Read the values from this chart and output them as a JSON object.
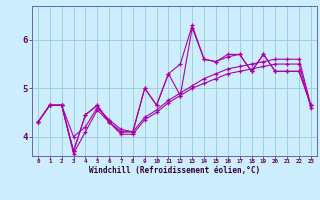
{
  "xlabel": "Windchill (Refroidissement éolien,°C)",
  "bg_color": "#cceeff",
  "line_color": "#aa00aa",
  "grid_color": "#99cccc",
  "xlim": [
    -0.5,
    23.5
  ],
  "ylim": [
    3.6,
    6.7
  ],
  "xticks": [
    0,
    1,
    2,
    3,
    4,
    5,
    6,
    7,
    8,
    9,
    10,
    11,
    12,
    13,
    14,
    15,
    16,
    17,
    18,
    19,
    20,
    21,
    22,
    23
  ],
  "yticks": [
    4,
    5,
    6
  ],
  "line1_x": [
    0,
    1,
    2,
    3,
    4,
    5,
    6,
    7,
    8,
    9,
    10,
    11,
    12,
    13,
    14,
    15,
    16,
    17,
    18,
    19,
    20,
    21,
    22,
    23
  ],
  "line1_y": [
    4.3,
    4.65,
    4.65,
    3.7,
    4.45,
    4.65,
    4.3,
    4.1,
    4.1,
    5.0,
    4.65,
    5.3,
    5.5,
    6.3,
    5.6,
    5.55,
    5.7,
    5.7,
    5.35,
    5.7,
    5.35,
    5.35,
    5.35,
    4.65
  ],
  "line2_x": [
    0,
    1,
    2,
    3,
    4,
    5,
    6,
    7,
    8,
    9,
    10,
    11,
    12,
    13,
    14,
    15,
    16,
    17,
    18,
    19,
    20,
    21,
    22,
    23
  ],
  "line2_y": [
    4.3,
    4.65,
    4.65,
    3.7,
    4.45,
    4.65,
    4.3,
    4.1,
    4.1,
    5.0,
    4.65,
    5.3,
    4.85,
    6.25,
    5.6,
    5.55,
    5.65,
    5.7,
    5.35,
    5.7,
    5.35,
    5.35,
    5.35,
    4.65
  ],
  "line3_x": [
    0,
    1,
    2,
    3,
    4,
    5,
    6,
    7,
    8,
    9,
    10,
    11,
    12,
    13,
    14,
    15,
    16,
    17,
    18,
    19,
    20,
    21,
    22,
    23
  ],
  "line3_y": [
    4.3,
    4.65,
    4.65,
    3.65,
    4.1,
    4.55,
    4.3,
    4.05,
    4.05,
    4.35,
    4.5,
    4.7,
    4.85,
    5.0,
    5.1,
    5.2,
    5.3,
    5.35,
    5.4,
    5.45,
    5.5,
    5.5,
    5.5,
    4.6
  ],
  "line4_x": [
    0,
    1,
    2,
    3,
    4,
    5,
    6,
    7,
    8,
    9,
    10,
    11,
    12,
    13,
    14,
    15,
    16,
    17,
    18,
    19,
    20,
    21,
    22,
    23
  ],
  "line4_y": [
    4.3,
    4.65,
    4.65,
    4.0,
    4.2,
    4.6,
    4.35,
    4.15,
    4.1,
    4.4,
    4.55,
    4.75,
    4.9,
    5.05,
    5.2,
    5.3,
    5.4,
    5.45,
    5.5,
    5.55,
    5.6,
    5.6,
    5.6,
    4.65
  ]
}
